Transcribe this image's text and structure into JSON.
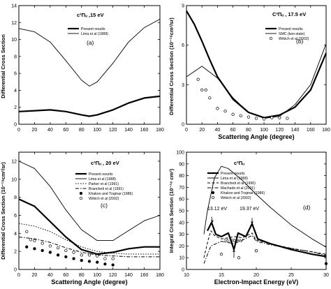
{
  "chart_data": [
    {
      "type": "line",
      "panel_label": "(a)",
      "annotation": "c³Πᵤ ,15 eV",
      "xlabel": "",
      "ylabel": "Differential Cross Section",
      "xlim": [
        0,
        180
      ],
      "ylim": [
        0,
        14
      ],
      "xticks": [
        0,
        20,
        40,
        60,
        80,
        100,
        120,
        140,
        160,
        180
      ],
      "yticks": [
        0,
        2,
        4,
        6,
        8,
        10,
        12,
        14
      ],
      "legend": [
        "Present results",
        "Lima et al (1988)"
      ],
      "series": [
        {
          "name": "Present results",
          "style": "thick",
          "x": [
            0,
            20,
            40,
            60,
            80,
            90,
            100,
            120,
            140,
            160,
            180
          ],
          "y": [
            1.5,
            1.6,
            1.7,
            1.5,
            1.1,
            0.95,
            1.1,
            1.7,
            2.5,
            3.1,
            3.3
          ]
        },
        {
          "name": "Lima et al (1988)",
          "style": "thin",
          "x": [
            0,
            20,
            40,
            60,
            80,
            90,
            100,
            120,
            140,
            160,
            180
          ],
          "y": [
            11.3,
            10.9,
            9.7,
            7.5,
            5.2,
            4.5,
            5.0,
            7.2,
            9.7,
            11.4,
            12.4
          ]
        }
      ]
    },
    {
      "type": "line",
      "panel_label": "(b)",
      "annotation": "C³Πᵤ , 17.5 eV",
      "xlabel": "Scattering Angle (degree)",
      "ylabel": "Differential Cross Section (10⁻¹⁸cm²/sr)",
      "xlim": [
        0,
        180
      ],
      "ylim": [
        0,
        9
      ],
      "xticks": [
        0,
        20,
        40,
        60,
        80,
        100,
        120,
        140,
        160,
        180
      ],
      "yticks": [
        0,
        3,
        6,
        9
      ],
      "legend": [
        "Present results",
        "SMC (two-state)",
        "Wrkich et al (2002)"
      ],
      "series": [
        {
          "name": "Present results",
          "style": "thick",
          "x": [
            0,
            10,
            20,
            30,
            40,
            60,
            80,
            100,
            120,
            140,
            160,
            180
          ],
          "y": [
            8.6,
            7.6,
            6.3,
            4.9,
            3.6,
            1.9,
            0.9,
            0.5,
            0.7,
            1.3,
            2.6,
            5.4
          ]
        },
        {
          "name": "SMC (two-state)",
          "style": "thin",
          "x": [
            0,
            20,
            40,
            60,
            80,
            100,
            120,
            140,
            160,
            180
          ],
          "y": [
            3.6,
            4.4,
            3.5,
            2.0,
            0.9,
            0.45,
            0.6,
            1.5,
            3.0,
            6.1
          ]
        },
        {
          "name": "Wrkich et al (2002)",
          "style": "open-circles",
          "x": [
            15,
            20,
            25,
            30,
            40,
            50,
            60,
            70,
            80,
            90,
            100,
            110,
            120,
            130
          ],
          "y": [
            3.4,
            2.6,
            2.6,
            2.0,
            1.2,
            1.0,
            0.75,
            0.65,
            0.55,
            0.45,
            0.4,
            0.5,
            0.5,
            0.45
          ]
        }
      ]
    },
    {
      "type": "line",
      "panel_label": "(c)",
      "annotation": "c³Πᵤ , 20 eV",
      "xlabel": "Scattering Angle (degree)",
      "ylabel": "Differential Cross Section (10⁻¹⁸cm²/sr)",
      "xlim": [
        0,
        180
      ],
      "ylim": [
        0,
        13
      ],
      "xticks": [
        0,
        20,
        40,
        60,
        80,
        100,
        120,
        140,
        160,
        180
      ],
      "yticks": [
        0,
        2,
        4,
        6,
        8,
        10,
        12
      ],
      "legend": [
        "Present results",
        "Lima et al (1988)",
        "Parker et al (1991)",
        "Branchett et al (1991)",
        "Khakoo and Trajmar (1986)",
        "Wrkich et al (2002)"
      ],
      "series": [
        {
          "name": "Present results",
          "style": "thick",
          "x": [
            0,
            20,
            40,
            60,
            80,
            100,
            120,
            140,
            160,
            180
          ],
          "y": [
            7.8,
            7.0,
            5.3,
            3.6,
            2.2,
            1.7,
            1.9,
            2.3,
            2.5,
            2.5
          ]
        },
        {
          "name": "Lima et al (1988)",
          "style": "thin",
          "x": [
            0,
            20,
            40,
            60,
            80,
            100,
            120,
            140,
            160,
            180
          ],
          "y": [
            12.0,
            11.2,
            9.2,
            6.6,
            4.4,
            3.2,
            3.2,
            4.3,
            5.4,
            6.0
          ]
        },
        {
          "name": "Parker et al (1991)",
          "style": "dotted",
          "x": [
            0,
            20,
            40,
            60,
            80,
            100,
            120,
            140,
            160,
            180
          ],
          "y": [
            5.1,
            4.8,
            4.2,
            3.3,
            2.5,
            2.0,
            1.8,
            1.7,
            1.7,
            1.7
          ]
        },
        {
          "name": "Branchett et al (1991)",
          "style": "dashdot",
          "x": [
            0,
            20,
            40,
            60,
            80,
            100,
            120,
            140,
            160,
            180
          ],
          "y": [
            3.6,
            3.4,
            3.0,
            2.4,
            1.9,
            1.6,
            1.5,
            1.4,
            1.4,
            1.4
          ]
        },
        {
          "name": "Khakoo and Trajmar (1986)",
          "style": "filled-circles",
          "x": [
            10,
            20,
            30,
            40,
            50,
            60,
            70,
            80,
            90,
            100,
            110,
            120
          ],
          "y": [
            2.5,
            2.3,
            2.1,
            1.9,
            1.6,
            1.4,
            1.2,
            1.0,
            0.9,
            0.8,
            0.6,
            0.5
          ]
        },
        {
          "name": "Wrkich et al (2002)",
          "style": "open-circles",
          "x": [
            10,
            15,
            20,
            30,
            40,
            50,
            60,
            70,
            80,
            90,
            100,
            110,
            120
          ],
          "y": [
            4.2,
            3.3,
            3.2,
            2.9,
            2.6,
            2.4,
            2.1,
            1.9,
            1.6,
            1.6,
            1.5,
            1.2,
            1.2
          ]
        }
      ]
    },
    {
      "type": "line",
      "panel_label": "(d)",
      "annotation": "c³Πᵤ",
      "xlabel": "Electron-Impact Energy (eV)",
      "ylabel": "Integral Cross Section (10⁻¹⁸ cm²)",
      "xlim": [
        10,
        30
      ],
      "ylim": [
        0,
        100
      ],
      "xticks": [
        10,
        15,
        20,
        25,
        30
      ],
      "yticks": [
        0,
        10,
        20,
        30,
        40,
        50,
        60,
        70,
        80,
        90,
        100
      ],
      "legend": [
        "Present results",
        "Lima et al (1988)",
        "Branchett et al (1990)",
        "Machado et al (2001)",
        "Khakoo and Trajmar (1986)",
        "Wrkich et al (2002)"
      ],
      "arrow_labels": [
        "13.12 eV",
        "19.37 eV",
        "16.80 eV"
      ],
      "series": [
        {
          "name": "Present results",
          "style": "thick",
          "x": [
            13,
            13.6,
            14.2,
            15,
            16,
            16.8,
            17.4,
            18.5,
            19.4,
            20.2,
            22,
            25,
            28,
            30
          ],
          "y": [
            33,
            40,
            30,
            28,
            31,
            17,
            31,
            28,
            39,
            26,
            22,
            17,
            13,
            11
          ]
        },
        {
          "name": "Lima et al (1988)",
          "style": "thin",
          "x": [
            12.5,
            13,
            14,
            15,
            16,
            18,
            20,
            22,
            25,
            28,
            30
          ],
          "y": [
            30,
            50,
            78,
            88,
            86,
            76,
            64,
            53,
            38,
            26,
            19
          ]
        },
        {
          "name": "Branchett et al (1990)",
          "style": "dashed",
          "x": [
            12.5,
            13.1,
            13.5,
            14,
            15,
            16,
            17,
            18,
            19.4,
            20,
            22,
            25,
            28,
            30
          ],
          "y": [
            10,
            25,
            33,
            29,
            26,
            27,
            28,
            27,
            31,
            25,
            22,
            18,
            15,
            13
          ]
        },
        {
          "name": "Machado et al (2001)",
          "style": "dashdot",
          "x": [
            12.5,
            13.5,
            15,
            16.8,
            18,
            19.4,
            20,
            22,
            25,
            28,
            30
          ],
          "y": [
            5,
            20,
            24,
            22,
            25,
            29,
            24,
            21,
            18,
            15,
            12
          ]
        },
        {
          "name": "Khakoo and Trajmar (1986)",
          "style": "filled-circles",
          "x": [
            20,
            30
          ],
          "y": [
            16,
            5
          ]
        },
        {
          "name": "Wrkich et al (2002)",
          "style": "open-circles",
          "x": [
            15,
            17.5,
            20
          ],
          "y": [
            13,
            10,
            16
          ]
        }
      ]
    }
  ]
}
